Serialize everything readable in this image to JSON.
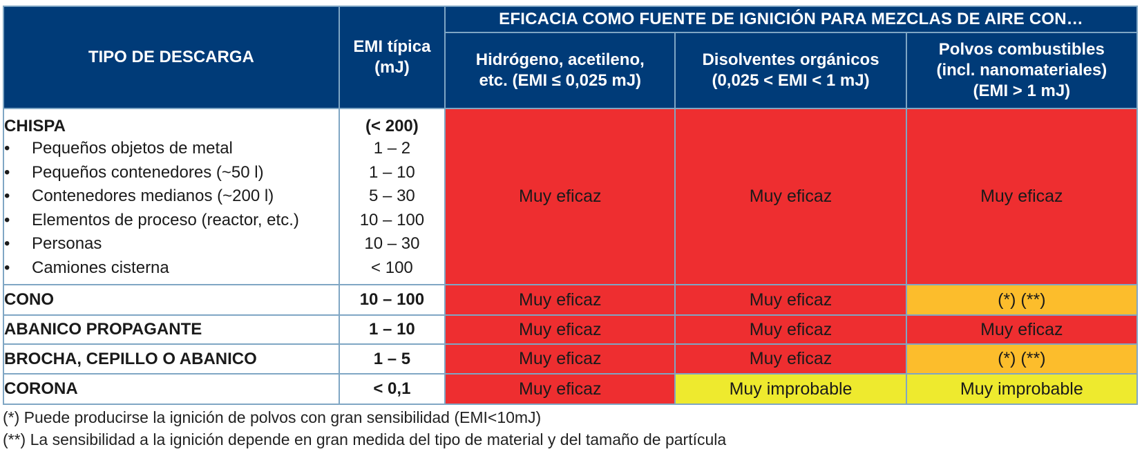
{
  "header": {
    "type_col": "TIPO DE DESCARGA",
    "emi_col_line1": "EMI típica",
    "emi_col_line2": "(mJ)",
    "efficacy_title": "EFICACIA COMO FUENTE DE IGNICIÓN PARA MEZCLAS DE AIRE CON…",
    "cols": [
      {
        "line1": "Hidrógeno, acetileno,",
        "line2": "etc. (EMI ≤ 0,025 mJ)",
        "line3": ""
      },
      {
        "line1": "Disolventes orgánicos",
        "line2": "(0,025 < EMI < 1 mJ)",
        "line3": ""
      },
      {
        "line1": "Polvos combustibles",
        "line2": "(incl. nanomateriales)",
        "line3": "(EMI > 1 mJ)"
      }
    ]
  },
  "rows": {
    "chispa": {
      "label": "CHISPA",
      "emi": "(< 200)",
      "subitems": [
        {
          "label": "Pequeños objetos de metal",
          "emi": "1 – 2"
        },
        {
          "label": "Pequeños contenedores (~50 l)",
          "emi": "1 – 10"
        },
        {
          "label": "Contenedores medianos (~200 l)",
          "emi": "5 – 30"
        },
        {
          "label": "Elementos de proceso (reactor, etc.)",
          "emi": "10 – 100"
        },
        {
          "label": "Personas",
          "emi": "10 – 30"
        },
        {
          "label": "Camiones cisterna",
          "emi": "< 100"
        }
      ],
      "cells": [
        "Muy eficaz",
        "Muy eficaz",
        "Muy eficaz"
      ]
    },
    "cono": {
      "label": "CONO",
      "emi": "10 – 100",
      "cells": [
        "Muy eficaz",
        "Muy eficaz",
        "(*) (**)"
      ]
    },
    "abanico": {
      "label": "ABANICO PROPAGANTE",
      "emi": "1 – 10",
      "cells": [
        "Muy eficaz",
        "Muy eficaz",
        "Muy eficaz"
      ]
    },
    "brocha": {
      "label": "BROCHA, CEPILLO O ABANICO",
      "emi": "1 – 5",
      "cells": [
        "Muy eficaz",
        "Muy eficaz",
        "(*) (**)"
      ]
    },
    "corona": {
      "label": "CORONA",
      "emi": "< 0,1",
      "cells": [
        "Muy eficaz",
        "Muy improbable",
        "Muy improbable"
      ]
    }
  },
  "bullet": "•",
  "footnotes": [
    "(*) Puede producirse la ignición de polvos con gran sensibilidad (EMI<10mJ)",
    "(**) La sensibilidad a la ignición depende en gran medida del tipo de material y del tamaño de partícula"
  ],
  "colors": {
    "header_bg": "#003b78",
    "very_effective": "#ee2e30",
    "conditional": "#fcbd2c",
    "improbable": "#eeea2e"
  }
}
